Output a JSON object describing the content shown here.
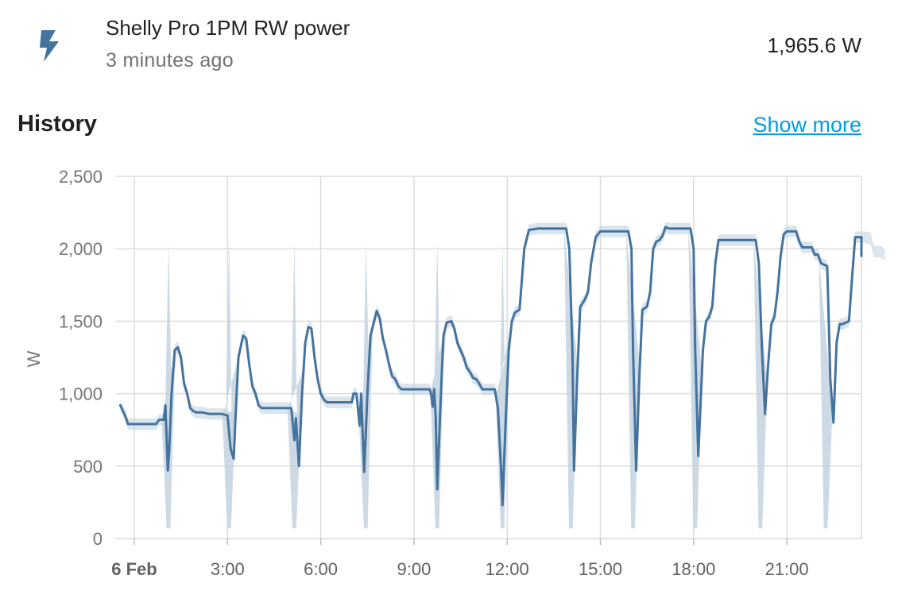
{
  "entity": {
    "name": "Shelly Pro 1PM RW power",
    "last_changed": "3 minutes ago",
    "state": "1,965.6 W",
    "icon": "flash-icon",
    "icon_color": "#44739e"
  },
  "history": {
    "title": "History",
    "show_more": "Show more"
  },
  "chart_data": {
    "type": "line",
    "ylabel": "W",
    "ylim": [
      0,
      2500
    ],
    "y_ticks": [
      "0",
      "500",
      "1,000",
      "1,500",
      "2,000",
      "2,500"
    ],
    "x_ticks": [
      "6 Feb",
      "3:00",
      "6:00",
      "9:00",
      "12:00",
      "15:00",
      "18:00",
      "21:00"
    ],
    "line_color": "#44739e",
    "band_color": "#c4d3e0",
    "grid": true,
    "series": [
      {
        "values": [
          [
            -0.45,
            920
          ],
          [
            -0.3,
            850
          ],
          [
            -0.2,
            790
          ],
          [
            0.0,
            790
          ],
          [
            0.5,
            790
          ],
          [
            0.7,
            790
          ],
          [
            0.8,
            820
          ],
          [
            0.95,
            820
          ],
          [
            1.0,
            920
          ],
          [
            1.08,
            470
          ],
          [
            1.12,
            600
          ],
          [
            1.2,
            1000
          ],
          [
            1.3,
            1300
          ],
          [
            1.4,
            1320
          ],
          [
            1.5,
            1250
          ],
          [
            1.6,
            1070
          ],
          [
            1.7,
            1000
          ],
          [
            1.8,
            900
          ],
          [
            1.9,
            880
          ],
          [
            2.0,
            870
          ],
          [
            2.2,
            870
          ],
          [
            2.4,
            860
          ],
          [
            2.6,
            860
          ],
          [
            2.8,
            860
          ],
          [
            3.0,
            850
          ],
          [
            3.1,
            620
          ],
          [
            3.2,
            550
          ],
          [
            3.25,
            800
          ],
          [
            3.35,
            1250
          ],
          [
            3.5,
            1400
          ],
          [
            3.6,
            1380
          ],
          [
            3.7,
            1200
          ],
          [
            3.8,
            1050
          ],
          [
            3.9,
            1000
          ],
          [
            4.0,
            920
          ],
          [
            4.1,
            900
          ],
          [
            4.5,
            900
          ],
          [
            5.0,
            900
          ],
          [
            5.05,
            900
          ],
          [
            5.15,
            680
          ],
          [
            5.2,
            830
          ],
          [
            5.3,
            500
          ],
          [
            5.4,
            1000
          ],
          [
            5.5,
            1350
          ],
          [
            5.6,
            1460
          ],
          [
            5.7,
            1450
          ],
          [
            5.8,
            1250
          ],
          [
            5.9,
            1100
          ],
          [
            6.0,
            1000
          ],
          [
            6.1,
            960
          ],
          [
            6.2,
            940
          ],
          [
            6.5,
            940
          ],
          [
            7.0,
            940
          ],
          [
            7.05,
            1000
          ],
          [
            7.15,
            1000
          ],
          [
            7.25,
            780
          ],
          [
            7.3,
            1000
          ],
          [
            7.4,
            460
          ],
          [
            7.5,
            1000
          ],
          [
            7.6,
            1400
          ],
          [
            7.8,
            1570
          ],
          [
            7.9,
            1520
          ],
          [
            8.0,
            1380
          ],
          [
            8.1,
            1300
          ],
          [
            8.2,
            1200
          ],
          [
            8.3,
            1120
          ],
          [
            8.4,
            1100
          ],
          [
            8.5,
            1050
          ],
          [
            8.6,
            1030
          ],
          [
            9.0,
            1030
          ],
          [
            9.5,
            1030
          ],
          [
            9.55,
            1000
          ],
          [
            9.6,
            910
          ],
          [
            9.65,
            1030
          ],
          [
            9.7,
            830
          ],
          [
            9.75,
            340
          ],
          [
            9.85,
            900
          ],
          [
            9.95,
            1400
          ],
          [
            10.05,
            1490
          ],
          [
            10.2,
            1500
          ],
          [
            10.3,
            1450
          ],
          [
            10.4,
            1350
          ],
          [
            10.5,
            1300
          ],
          [
            10.6,
            1250
          ],
          [
            10.7,
            1180
          ],
          [
            10.8,
            1150
          ],
          [
            10.9,
            1110
          ],
          [
            11.0,
            1100
          ],
          [
            11.1,
            1070
          ],
          [
            11.2,
            1030
          ],
          [
            11.5,
            1030
          ],
          [
            11.6,
            1030
          ],
          [
            11.7,
            900
          ],
          [
            11.8,
            500
          ],
          [
            11.85,
            230
          ],
          [
            11.95,
            800
          ],
          [
            12.05,
            1300
          ],
          [
            12.15,
            1500
          ],
          [
            12.25,
            1560
          ],
          [
            12.4,
            1580
          ],
          [
            12.55,
            2000
          ],
          [
            12.7,
            2130
          ],
          [
            13.0,
            2140
          ],
          [
            13.5,
            2140
          ],
          [
            13.9,
            2140
          ],
          [
            14.0,
            2000
          ],
          [
            14.1,
            1300
          ],
          [
            14.15,
            470
          ],
          [
            14.25,
            1100
          ],
          [
            14.35,
            1600
          ],
          [
            14.5,
            1650
          ],
          [
            14.6,
            1700
          ],
          [
            14.7,
            1900
          ],
          [
            14.85,
            2080
          ],
          [
            15.0,
            2120
          ],
          [
            15.5,
            2120
          ],
          [
            15.9,
            2120
          ],
          [
            16.0,
            2000
          ],
          [
            16.05,
            1300
          ],
          [
            16.15,
            470
          ],
          [
            16.25,
            1100
          ],
          [
            16.35,
            1580
          ],
          [
            16.5,
            1600
          ],
          [
            16.6,
            1700
          ],
          [
            16.7,
            2000
          ],
          [
            16.8,
            2050
          ],
          [
            16.9,
            2060
          ],
          [
            17.0,
            2090
          ],
          [
            17.1,
            2150
          ],
          [
            17.2,
            2140
          ],
          [
            17.5,
            2140
          ],
          [
            17.9,
            2140
          ],
          [
            18.0,
            2000
          ],
          [
            18.05,
            1300
          ],
          [
            18.15,
            570
          ],
          [
            18.3,
            1300
          ],
          [
            18.4,
            1500
          ],
          [
            18.5,
            1530
          ],
          [
            18.6,
            1600
          ],
          [
            18.7,
            1900
          ],
          [
            18.8,
            2060
          ],
          [
            19.0,
            2060
          ],
          [
            19.5,
            2060
          ],
          [
            20.0,
            2060
          ],
          [
            20.1,
            1900
          ],
          [
            20.2,
            1300
          ],
          [
            20.3,
            860
          ],
          [
            20.4,
            1200
          ],
          [
            20.5,
            1480
          ],
          [
            20.6,
            1530
          ],
          [
            20.7,
            1700
          ],
          [
            20.8,
            1950
          ],
          [
            20.9,
            2100
          ],
          [
            21.0,
            2120
          ],
          [
            21.3,
            2120
          ],
          [
            21.4,
            2050
          ],
          [
            21.5,
            2010
          ],
          [
            21.8,
            2010
          ],
          [
            21.9,
            1960
          ],
          [
            22.0,
            1960
          ],
          [
            22.1,
            1900
          ],
          [
            22.3,
            1880
          ],
          [
            22.35,
            1500
          ],
          [
            22.4,
            1100
          ],
          [
            22.5,
            800
          ],
          [
            22.6,
            1350
          ],
          [
            22.7,
            1480
          ],
          [
            22.8,
            1480
          ],
          [
            23.0,
            1500
          ],
          [
            23.1,
            1800
          ],
          [
            23.2,
            2080
          ],
          [
            23.5,
            2080
          ],
          [
            23.7,
            2070
          ],
          [
            23.8,
            1980
          ],
          [
            24.0,
            1980
          ],
          [
            24.1,
            1970
          ],
          [
            24.15,
            1950
          ]
        ]
      }
    ],
    "min_band": [
      [
        1.1,
        70
      ],
      [
        3.05,
        70
      ],
      [
        5.15,
        70
      ],
      [
        7.45,
        70
      ],
      [
        9.75,
        70
      ],
      [
        11.85,
        70
      ],
      [
        14.05,
        70
      ],
      [
        16.05,
        70
      ],
      [
        18.05,
        70
      ],
      [
        20.15,
        70
      ],
      [
        22.25,
        70
      ]
    ],
    "max_band": [
      [
        1.1,
        2050
      ],
      [
        3.05,
        2100
      ],
      [
        5.15,
        2050
      ],
      [
        7.45,
        2050
      ],
      [
        9.75,
        2050
      ],
      [
        11.85,
        2050
      ]
    ]
  }
}
